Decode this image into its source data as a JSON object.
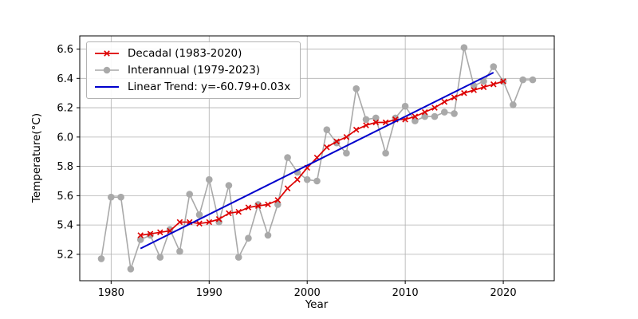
{
  "chart_data": {
    "type": "line",
    "title": "",
    "xlabel": "Year",
    "ylabel": "Temperature(°C)",
    "xlim": [
      1976.8,
      2025.2
    ],
    "ylim": [
      5.02,
      6.69
    ],
    "xticks": [
      "1980",
      "1990",
      "2000",
      "2010",
      "2020"
    ],
    "yticks": [
      "5.2",
      "5.4",
      "5.6",
      "5.8",
      "6.0",
      "6.2",
      "6.4",
      "6.6"
    ],
    "grid": true,
    "legend_position": "upper left",
    "colors": {
      "decadal": "#dd0000",
      "interannual": "#a9a9a9",
      "trend": "#0000cc",
      "grid": "#b0b0b0"
    },
    "series": [
      {
        "name": "Decadal (1983-2020)",
        "color": "#dd0000",
        "marker": "x",
        "width": 1.7,
        "z": 3,
        "x": [
          1983,
          1984,
          1985,
          1986,
          1987,
          1988,
          1989,
          1990,
          1991,
          1992,
          1993,
          1994,
          1995,
          1996,
          1997,
          1998,
          1999,
          2000,
          2001,
          2002,
          2003,
          2004,
          2005,
          2006,
          2007,
          2008,
          2009,
          2010,
          2011,
          2012,
          2013,
          2014,
          2015,
          2016,
          2017,
          2018,
          2019,
          2020
        ],
        "y": [
          5.33,
          5.34,
          5.35,
          5.36,
          5.42,
          5.42,
          5.41,
          5.42,
          5.44,
          5.48,
          5.49,
          5.52,
          5.53,
          5.54,
          5.57,
          5.65,
          5.71,
          5.79,
          5.86,
          5.93,
          5.97,
          6.0,
          6.05,
          6.08,
          6.1,
          6.1,
          6.12,
          6.12,
          6.14,
          6.17,
          6.2,
          6.24,
          6.27,
          6.3,
          6.32,
          6.34,
          6.36,
          6.38
        ]
      },
      {
        "name": "Interannual (1979-2023)",
        "color": "#a9a9a9",
        "marker": "circle",
        "width": 1.6,
        "z": 2,
        "x": [
          1979,
          1980,
          1981,
          1982,
          1983,
          1984,
          1985,
          1986,
          1987,
          1988,
          1989,
          1990,
          1991,
          1992,
          1993,
          1994,
          1995,
          1996,
          1997,
          1998,
          1999,
          2000,
          2001,
          2002,
          2003,
          2004,
          2005,
          2006,
          2007,
          2008,
          2009,
          2010,
          2011,
          2012,
          2013,
          2014,
          2015,
          2016,
          2017,
          2018,
          2019,
          2020,
          2021,
          2022,
          2023
        ],
        "y": [
          5.17,
          5.59,
          5.59,
          5.1,
          5.3,
          5.33,
          5.18,
          5.37,
          5.22,
          5.61,
          5.47,
          5.71,
          5.42,
          5.67,
          5.18,
          5.31,
          5.54,
          5.33,
          5.54,
          5.86,
          5.76,
          5.71,
          5.7,
          6.05,
          5.96,
          5.89,
          6.33,
          6.12,
          6.13,
          5.89,
          6.13,
          6.21,
          6.11,
          6.14,
          6.14,
          6.17,
          6.16,
          6.61,
          6.35,
          6.38,
          6.48,
          6.38,
          6.22,
          6.39,
          6.39
        ]
      },
      {
        "name": "Linear Trend: y=-60.79+0.03x",
        "color": "#0000cc",
        "marker": "none",
        "width": 2,
        "z": 4,
        "x": [
          1983,
          2019
        ],
        "y": [
          5.24,
          6.44
        ]
      }
    ]
  }
}
